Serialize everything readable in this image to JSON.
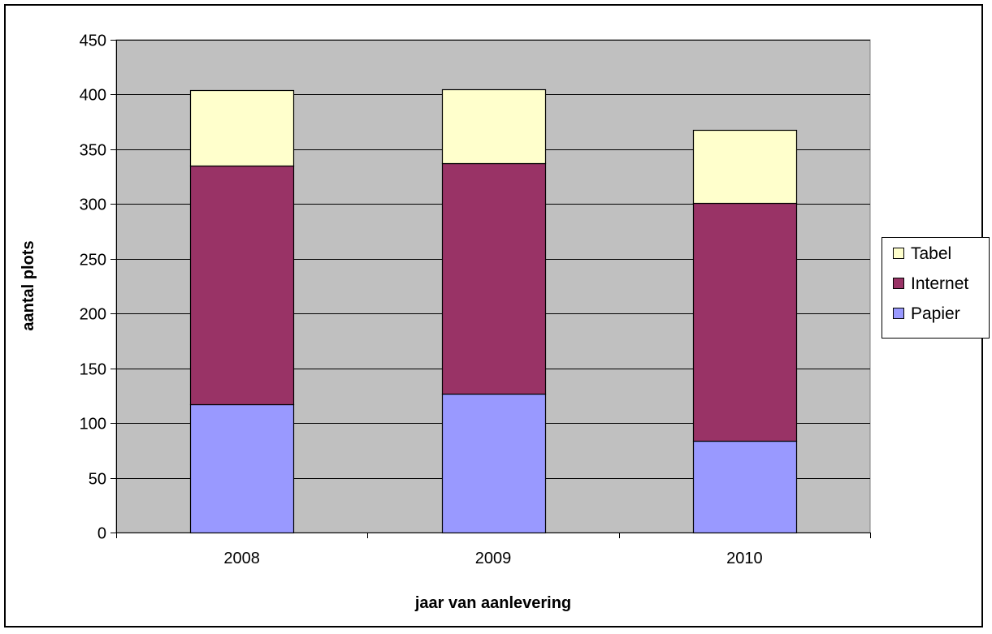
{
  "chart_data": {
    "type": "bar",
    "stacked": true,
    "title": "",
    "xlabel": "jaar van aanlevering",
    "ylabel": "aantal plots",
    "categories": [
      "2008",
      "2009",
      "2010"
    ],
    "series": [
      {
        "name": "Papier",
        "color": "#9999FF",
        "values": [
          117,
          127,
          84
        ]
      },
      {
        "name": "Internet",
        "color": "#993366",
        "values": [
          218,
          210,
          217
        ]
      },
      {
        "name": "Tabel",
        "color": "#FFFFCC",
        "values": [
          69,
          68,
          67
        ]
      }
    ],
    "legend_order": [
      "Tabel",
      "Internet",
      "Papier"
    ],
    "ylim": [
      0,
      450
    ],
    "y_ticks": [
      "0",
      "50",
      "100",
      "150",
      "200",
      "250",
      "300",
      "350",
      "400",
      "450"
    ],
    "plot_background": "#C0C0C0",
    "grid": true,
    "legend_position": "right"
  }
}
